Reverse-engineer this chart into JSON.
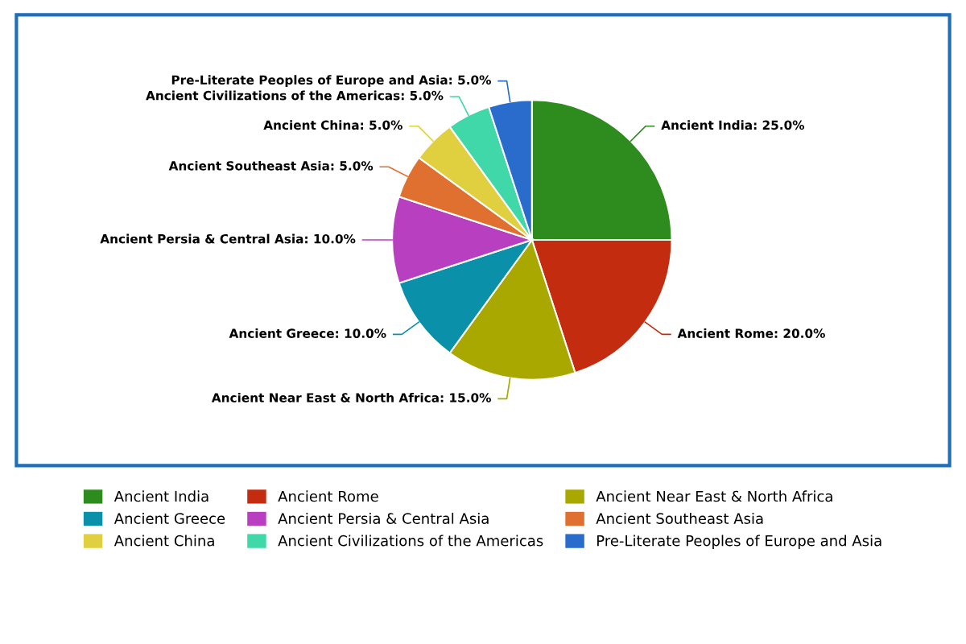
{
  "chart_data": {
    "type": "pie",
    "categories": [
      "Ancient India",
      "Ancient Rome",
      "Ancient Near East & North Africa",
      "Ancient Greece",
      "Ancient Persia & Central Asia",
      "Ancient Southeast Asia",
      "Ancient China",
      "Ancient Civilizations of the Americas",
      "Pre-Literate Peoples of Europe and Asia"
    ],
    "values": [
      25,
      20,
      15,
      10,
      10,
      5,
      5,
      5,
      5
    ],
    "colors": [
      "#2e8b1e",
      "#c42c10",
      "#a8a800",
      "#0a90a8",
      "#b840c0",
      "#e07030",
      "#e0d040",
      "#40d8a8",
      "#2a6ccc"
    ],
    "value_labels": [
      "Ancient India: 25.0%",
      "Ancient Rome: 20.0%",
      "Ancient Near East & North Africa: 15.0%",
      "Ancient Greece: 10.0%",
      "Ancient Persia & Central Asia: 10.0%",
      "Ancient Southeast Asia: 5.0%",
      "Ancient China: 5.0%",
      "Ancient Civilizations of the Americas: 5.0%",
      "Pre-Literate Peoples of Europe and Asia: 5.0%"
    ],
    "legend": "bottom"
  }
}
